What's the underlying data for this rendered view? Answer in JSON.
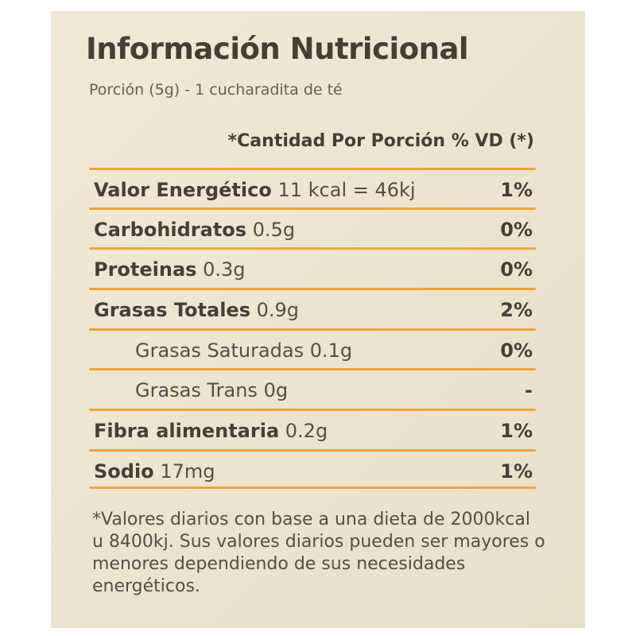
{
  "title": "Información Nutricional",
  "portion": "Porción (5g) - 1 cucharadita de té",
  "header": "*Cantidad Por Porción % VD (*)",
  "rows": [
    {
      "name": "Valor Energético",
      "value": "11 kcal = 46kj",
      "pct": "1%",
      "sub": false
    },
    {
      "name": "Carbohidratos",
      "value": "0.5g",
      "pct": "0%",
      "sub": false
    },
    {
      "name": "Proteinas",
      "value": "0.3g",
      "pct": "0%",
      "sub": false
    },
    {
      "name": "Grasas Totales",
      "value": "0.9g",
      "pct": "2%",
      "sub": false
    },
    {
      "name": "Grasas Saturadas",
      "value": "0.1g",
      "pct": "0%",
      "sub": true
    },
    {
      "name": "Grasas Trans",
      "value": "0g",
      "pct": "-",
      "sub": true
    },
    {
      "name": "Fibra alimentaria",
      "value": "0.2g",
      "pct": "1%",
      "sub": false
    },
    {
      "name": "Sodio",
      "value": "17mg",
      "pct": "1%",
      "sub": false
    }
  ],
  "footnote": "*Valores diarios con base a una dieta de 2000kcal u 8400kj. Sus valores diarios pueden ser mayores o menores dependiendo de sus necesidades energéticos.",
  "colors": {
    "rule": "#f0a23e",
    "background": "#efe6d3",
    "text": "#4a3c32"
  }
}
